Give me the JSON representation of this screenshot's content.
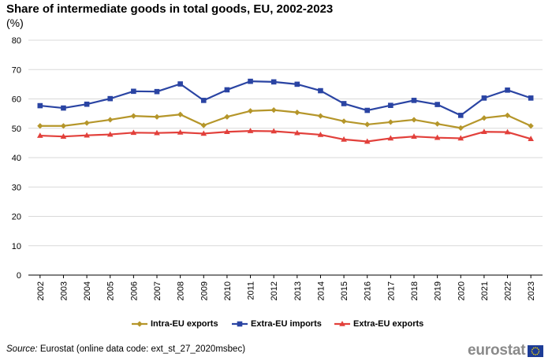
{
  "title": "Share of intermediate goods in total goods, EU, 2002-2023",
  "unit": "(%)",
  "source": {
    "label": "Source:",
    "text": " Eurostat (online data code: ext_st_27_2020msbec)"
  },
  "logo": {
    "text": "eurostat"
  },
  "chart_data": {
    "type": "line",
    "title": "Share of intermediate goods in total goods, EU, 2002-2023",
    "xlabel": "",
    "ylabel": "(%)",
    "ylim": [
      0,
      80
    ],
    "yticks": [
      0,
      10,
      20,
      30,
      40,
      50,
      60,
      70,
      80
    ],
    "grid": true,
    "legend_position": "bottom",
    "categories": [
      "2002",
      "2003",
      "2004",
      "2005",
      "2006",
      "2007",
      "2008",
      "2009",
      "2010",
      "2011",
      "2012",
      "2013",
      "2014",
      "2015",
      "2016",
      "2017",
      "2018",
      "2019",
      "2020",
      "2021",
      "2022",
      "2023"
    ],
    "series": [
      {
        "name": "Intra-EU exports",
        "color": "#b5962a",
        "marker": "diamond",
        "values": [
          50.8,
          50.8,
          51.8,
          52.9,
          54.2,
          53.9,
          54.7,
          51.0,
          53.9,
          55.9,
          56.2,
          55.4,
          54.2,
          52.4,
          51.3,
          52.1,
          52.9,
          51.5,
          50.1,
          53.5,
          54.4,
          50.8
        ]
      },
      {
        "name": "Extra-EU imports",
        "color": "#2a44a3",
        "marker": "square",
        "values": [
          57.7,
          56.9,
          58.2,
          60.1,
          62.6,
          62.5,
          65.1,
          59.5,
          63.1,
          66.0,
          65.8,
          65.0,
          62.8,
          58.4,
          56.1,
          57.8,
          59.5,
          58.1,
          54.4,
          60.3,
          63.0,
          60.3
        ]
      },
      {
        "name": "Extra-EU exports",
        "color": "#e2403b",
        "marker": "triangle",
        "values": [
          47.5,
          47.2,
          47.6,
          47.9,
          48.5,
          48.4,
          48.6,
          48.2,
          48.8,
          49.1,
          49.0,
          48.4,
          47.8,
          46.2,
          45.5,
          46.6,
          47.2,
          46.8,
          46.6,
          48.8,
          48.7,
          46.4
        ]
      }
    ]
  }
}
